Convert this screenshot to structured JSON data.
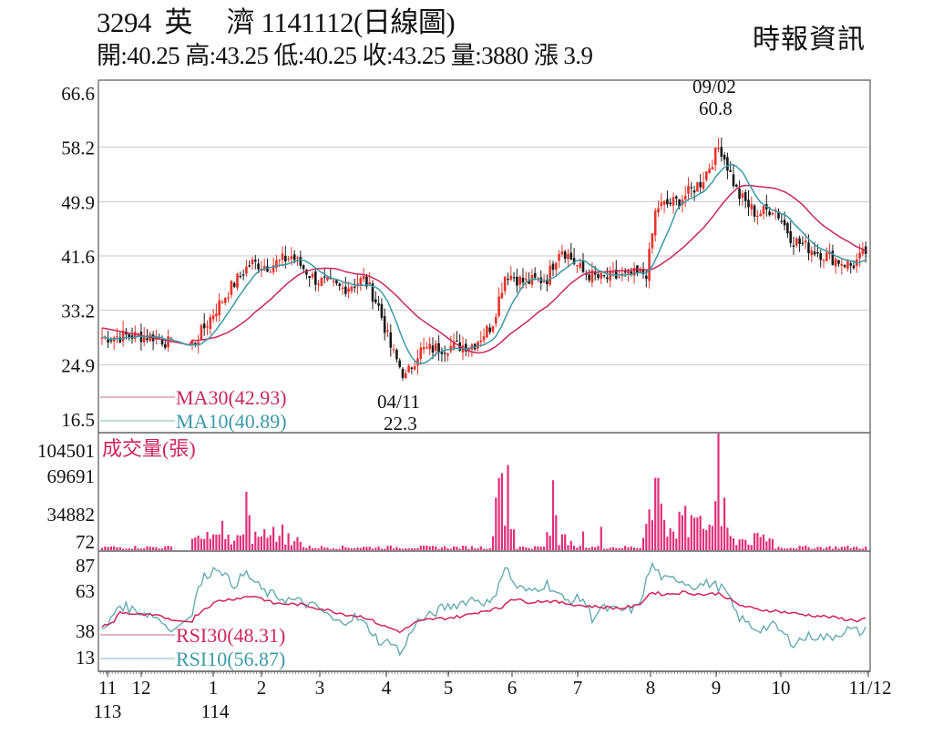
{
  "header": {
    "stock_code": "3294",
    "stock_name": "英　 濟",
    "date": "1141112",
    "chart_kind": "(日線圖)",
    "title_full": "3294  英　 濟 1141112(日線圖)",
    "ohlc_full": "開:40.25 高:43.25 低:40.25 收:43.25 量:3880 漲 3.9",
    "open": "40.25",
    "high": "43.25",
    "low": "40.25",
    "close": "43.25",
    "volume": "3880",
    "change": "3.9",
    "source": "時報資訊"
  },
  "colors": {
    "up": "#e8342c",
    "down": "#1a1a1a",
    "ma30": "#c8285a",
    "ma10": "#3a9aa8",
    "volume": "#e0307a",
    "rsi30": "#d0245c",
    "rsi10": "#5aa6b0",
    "grid": "#c8c8c8",
    "frame": "#777777"
  },
  "chart_data": [
    {
      "type": "candlestick",
      "title": "3294 英濟 1141112(日線圖)",
      "ylabel": "",
      "y_ticks": [
        "66.6",
        "58.2",
        "49.9",
        "41.6",
        "33.2",
        "24.9",
        "16.5"
      ],
      "ylim": [
        16.5,
        66.6
      ],
      "grid": true,
      "annotations": [
        {
          "label": "09/02",
          "value": "60.8",
          "type": "high"
        },
        {
          "label": "04/11",
          "value": "22.3",
          "type": "low"
        }
      ],
      "legend": [
        {
          "name": "MA30",
          "value": "42.93",
          "label": "MA30(42.93)"
        },
        {
          "name": "MA10",
          "value": "40.89",
          "label": "MA10(40.89)"
        }
      ],
      "close_path_estimate": {
        "months": [
          "113/11",
          "12",
          "114/1",
          "2",
          "3",
          "4",
          "5",
          "6",
          "7",
          "8",
          "9",
          "10",
          "11/12"
        ],
        "approx_close": [
          29.0,
          29.5,
          28.0,
          40.0,
          38.0,
          24.5,
          28.0,
          36.5,
          37.5,
          49.0,
          58.0,
          44.0,
          43.25
        ]
      }
    },
    {
      "type": "bar",
      "title": "成交量(張)",
      "y_ticks": [
        "104501",
        "69691",
        "34882",
        "72"
      ],
      "ylim": [
        72,
        104501
      ],
      "notes": "Peak volume ~104501 near 9/02; clusters near 1/2 (late Jan ~50000), late May (~70000), mid June (~55000), early Aug (~55000)"
    },
    {
      "type": "line",
      "title": "RSI",
      "y_ticks": [
        "87",
        "63",
        "38",
        "13"
      ],
      "ylim": [
        13,
        87
      ],
      "legend": [
        {
          "name": "RSI30",
          "value": "48.31",
          "label": "RSI30(48.31)"
        },
        {
          "name": "RSI10",
          "value": "56.87",
          "label": "RSI10(56.87)"
        }
      ]
    }
  ],
  "x_axis": {
    "ticks": [
      {
        "label": "11",
        "year": "113"
      },
      {
        "label": "12",
        "year": ""
      },
      {
        "label": "1",
        "year": "114"
      },
      {
        "label": "2",
        "year": ""
      },
      {
        "label": "3",
        "year": ""
      },
      {
        "label": "4",
        "year": ""
      },
      {
        "label": "5",
        "year": ""
      },
      {
        "label": "6",
        "year": ""
      },
      {
        "label": "7",
        "year": ""
      },
      {
        "label": "8",
        "year": ""
      },
      {
        "label": "9",
        "year": ""
      },
      {
        "label": "10",
        "year": ""
      },
      {
        "label": "11/12",
        "year": ""
      }
    ]
  },
  "labels": {
    "ma30": "MA30(42.93)",
    "ma10": "MA10(40.89)",
    "volume_title": "成交量(張)",
    "rsi30": "RSI30(48.31)",
    "rsi10": "RSI10(56.87)",
    "high_date": "09/02",
    "high_value": "60.8",
    "low_date": "04/11",
    "low_value": "22.3"
  }
}
